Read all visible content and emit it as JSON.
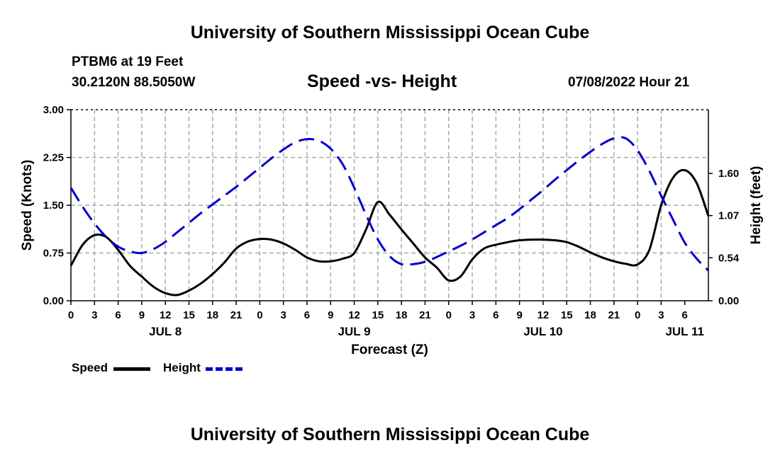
{
  "header": {
    "title": "University of Southern Mississippi Ocean Cube",
    "station": "PTBM6 at 19 Feet",
    "coordinates": "30.2120N  88.5050W",
    "subtitle": "Speed -vs- Height",
    "datetime": "07/08/2022 Hour 21"
  },
  "footer": {
    "title": "University of Southern Mississippi Ocean Cube"
  },
  "legend": {
    "speed_label": "Speed",
    "height_label": "Height"
  },
  "colors": {
    "speed": "#000000",
    "height": "#0000cc",
    "grid": "#aaaaaa"
  },
  "chart_data": {
    "type": "line",
    "xlabel": "Forecast (Z)",
    "ylabel_left": "Speed (Knots)",
    "ylabel_right": "Height (feet)",
    "x_range_hours": [
      0,
      81
    ],
    "x_tick_labels": [
      "0",
      "3",
      "6",
      "9",
      "12",
      "15",
      "18",
      "21",
      "0",
      "3",
      "6",
      "9",
      "12",
      "15",
      "18",
      "21",
      "0",
      "3",
      "6",
      "9",
      "12",
      "15",
      "18",
      "21",
      "0",
      "3",
      "6"
    ],
    "day_labels": [
      {
        "label": "JUL 8",
        "hour": 12
      },
      {
        "label": "JUL 9",
        "hour": 36
      },
      {
        "label": "JUL 10",
        "hour": 60
      },
      {
        "label": "JUL 11",
        "hour": 78
      }
    ],
    "y_left": {
      "min": 0,
      "max": 3.0,
      "ticks": [
        "0.00",
        "0.75",
        "1.50",
        "2.25",
        "3.00"
      ],
      "tick_values": [
        0,
        0.75,
        1.5,
        2.25,
        3.0
      ]
    },
    "y_right": {
      "min": 0,
      "max": 2.4,
      "ticks": [
        "0.00",
        "0.54",
        "1.07",
        "1.60"
      ],
      "tick_values": [
        0,
        0.54,
        1.07,
        1.6
      ]
    },
    "grid": true,
    "series": [
      {
        "name": "Speed",
        "axis": "left",
        "style": "solid",
        "x": [
          0,
          1.5,
          3,
          4.5,
          6,
          7.5,
          9,
          10.5,
          12,
          13.5,
          15,
          16.5,
          18,
          19.5,
          21,
          22.5,
          24,
          25.5,
          27,
          28.5,
          30,
          31.5,
          33,
          34.5,
          36,
          37.5,
          39,
          40.5,
          42,
          43.5,
          45,
          46.5,
          48,
          49.5,
          51,
          52.5,
          54,
          55.5,
          57,
          58.5,
          60,
          61.5,
          63,
          64.5,
          66,
          67.5,
          69,
          70.5,
          72,
          73.5,
          75,
          76.5,
          78,
          79.5,
          81
        ],
        "values": [
          0.55,
          0.88,
          1.03,
          1.0,
          0.8,
          0.55,
          0.38,
          0.22,
          0.12,
          0.09,
          0.16,
          0.27,
          0.42,
          0.6,
          0.82,
          0.93,
          0.97,
          0.96,
          0.9,
          0.8,
          0.68,
          0.62,
          0.62,
          0.66,
          0.75,
          1.12,
          1.55,
          1.35,
          1.12,
          0.9,
          0.68,
          0.52,
          0.32,
          0.38,
          0.65,
          0.82,
          0.88,
          0.92,
          0.95,
          0.96,
          0.96,
          0.95,
          0.92,
          0.85,
          0.76,
          0.68,
          0.62,
          0.58,
          0.57,
          0.8,
          1.5,
          1.93,
          2.05,
          1.85,
          1.33
        ]
      },
      {
        "name": "Height",
        "axis": "right",
        "style": "dashed",
        "x": [
          0,
          1.5,
          3,
          4.5,
          6,
          7.5,
          9,
          10.5,
          12,
          13.5,
          15,
          16.5,
          18,
          19.5,
          21,
          22.5,
          24,
          25.5,
          27,
          28.5,
          30,
          31.5,
          33,
          34.5,
          36,
          37.5,
          39,
          40.5,
          42,
          43.5,
          45,
          46.5,
          48,
          49.5,
          51,
          52.5,
          54,
          55.5,
          57,
          58.5,
          60,
          61.5,
          63,
          64.5,
          66,
          67.5,
          69,
          70.5,
          72,
          73.5,
          75,
          76.5,
          78,
          79.5,
          81
        ],
        "values": [
          1.42,
          1.18,
          0.97,
          0.8,
          0.68,
          0.62,
          0.6,
          0.65,
          0.74,
          0.86,
          0.98,
          1.1,
          1.21,
          1.32,
          1.43,
          1.55,
          1.67,
          1.79,
          1.9,
          1.99,
          2.03,
          2.01,
          1.91,
          1.72,
          1.42,
          1.08,
          0.77,
          0.56,
          0.46,
          0.46,
          0.49,
          0.55,
          0.62,
          0.69,
          0.77,
          0.86,
          0.95,
          1.04,
          1.15,
          1.27,
          1.39,
          1.52,
          1.64,
          1.76,
          1.87,
          1.97,
          2.04,
          2.04,
          1.89,
          1.63,
          1.32,
          1.02,
          0.73,
          0.53,
          0.38
        ]
      }
    ]
  }
}
